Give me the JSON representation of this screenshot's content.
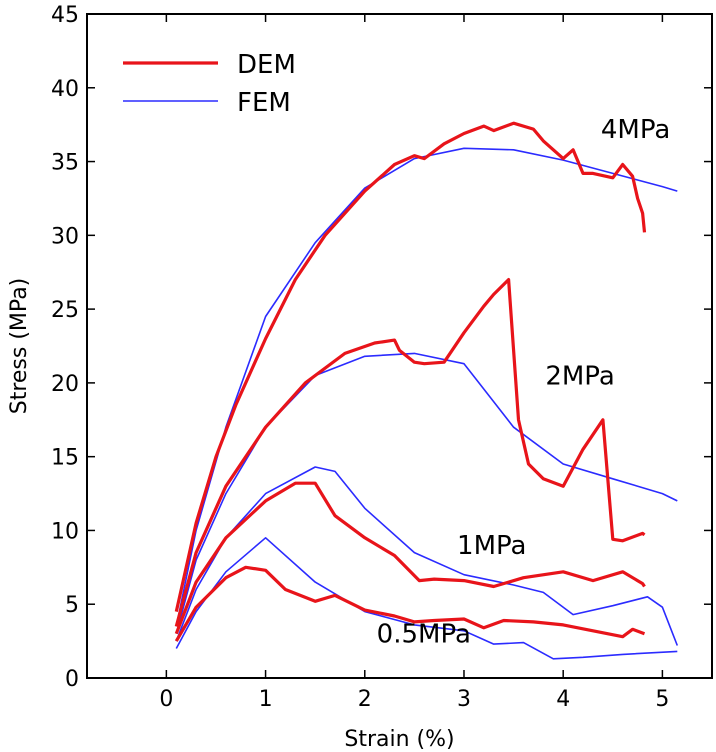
{
  "chart_data": {
    "type": "line",
    "xlabel": "Strain (%)",
    "ylabel": "Stress (MPa)",
    "xlim": [
      -0.8,
      5.5
    ],
    "ylim": [
      0,
      45
    ],
    "xticks": [
      "0",
      "1",
      "2",
      "3",
      "4",
      "5"
    ],
    "yticks": [
      "0",
      "5",
      "10",
      "15",
      "20",
      "25",
      "30",
      "35",
      "40",
      "45"
    ],
    "legend": {
      "placement": "top-left",
      "entries": [
        {
          "label": "DEM",
          "color": "#e8141a"
        },
        {
          "label": "FEM",
          "color": "#2b2bff"
        }
      ]
    },
    "annotations": [
      {
        "text": "4MPa",
        "x": 4.38,
        "y": 36.6
      },
      {
        "text": "2MPa",
        "x": 3.82,
        "y": 19.9
      },
      {
        "text": "1MPa",
        "x": 2.93,
        "y": 8.4
      },
      {
        "text": "0.5MPa",
        "x": 2.12,
        "y": 2.4
      }
    ],
    "series": [
      {
        "label": "DEM",
        "group": "4MPa",
        "color": "#e8141a",
        "x": [
          0.1,
          0.3,
          0.5,
          0.7,
          1.0,
          1.3,
          1.6,
          2.0,
          2.3,
          2.5,
          2.6,
          2.8,
          3.0,
          3.2,
          3.3,
          3.5,
          3.7,
          3.8,
          4.0,
          4.1,
          4.2,
          4.3,
          4.5,
          4.6,
          4.7,
          4.75,
          4.8,
          4.82
        ],
        "y": [
          4.5,
          10.5,
          15,
          18.5,
          23,
          27,
          30,
          33,
          34.8,
          35.4,
          35.2,
          36.2,
          36.9,
          37.4,
          37.1,
          37.6,
          37.2,
          36.4,
          35.2,
          35.8,
          34.2,
          34.2,
          33.9,
          34.8,
          34.0,
          32.5,
          31.5,
          30.2
        ]
      },
      {
        "label": "FEM",
        "group": "4MPa",
        "color": "#2b2bff",
        "x": [
          0.1,
          0.3,
          0.6,
          1.0,
          1.5,
          2.0,
          2.5,
          3.0,
          3.5,
          4.0,
          4.5,
          5.0,
          5.15
        ],
        "y": [
          3.5,
          10,
          17,
          24.5,
          29.5,
          33.2,
          35.2,
          35.9,
          35.8,
          35.1,
          34.2,
          33.3,
          33.0
        ]
      },
      {
        "label": "DEM",
        "group": "2MPa",
        "color": "#e8141a",
        "x": [
          0.1,
          0.3,
          0.6,
          1.0,
          1.4,
          1.8,
          2.1,
          2.3,
          2.35,
          2.5,
          2.6,
          2.8,
          3.0,
          3.2,
          3.3,
          3.45,
          3.55,
          3.65,
          3.8,
          4.0,
          4.2,
          4.4,
          4.5,
          4.6,
          4.8,
          4.82
        ],
        "y": [
          3.5,
          8.5,
          13,
          17,
          20,
          22,
          22.7,
          22.9,
          22.2,
          21.4,
          21.3,
          21.4,
          23.4,
          25.2,
          26.0,
          27.0,
          17.5,
          14.5,
          13.5,
          13.0,
          15.5,
          17.5,
          9.4,
          9.3,
          9.8,
          9.7
        ]
      },
      {
        "label": "FEM",
        "group": "2MPa",
        "color": "#2b2bff",
        "x": [
          0.1,
          0.3,
          0.6,
          1.0,
          1.5,
          2.0,
          2.5,
          3.0,
          3.5,
          4.0,
          4.5,
          5.0,
          5.15
        ],
        "y": [
          3.0,
          8.0,
          12.5,
          17,
          20.5,
          21.8,
          22.0,
          21.3,
          17.0,
          14.5,
          13.5,
          12.5,
          12.0
        ]
      },
      {
        "label": "DEM",
        "group": "1MPa",
        "color": "#e8141a",
        "x": [
          0.1,
          0.3,
          0.6,
          1.0,
          1.3,
          1.5,
          1.7,
          2.0,
          2.3,
          2.55,
          2.7,
          3.0,
          3.3,
          3.6,
          4.0,
          4.3,
          4.6,
          4.8,
          4.82
        ],
        "y": [
          3.0,
          6.5,
          9.5,
          12,
          13.2,
          13.2,
          11.0,
          9.5,
          8.3,
          6.6,
          6.7,
          6.6,
          6.2,
          6.8,
          7.2,
          6.6,
          7.2,
          6.4,
          6.2
        ]
      },
      {
        "label": "FEM",
        "group": "1MPa",
        "color": "#2b2bff",
        "x": [
          0.1,
          0.3,
          0.6,
          1.0,
          1.5,
          1.7,
          2.0,
          2.5,
          3.0,
          3.5,
          3.8,
          4.1,
          4.5,
          4.85,
          5.0,
          5.15
        ],
        "y": [
          2.5,
          6.0,
          9.5,
          12.5,
          14.3,
          14.0,
          11.5,
          8.5,
          7.0,
          6.3,
          5.8,
          4.3,
          4.9,
          5.5,
          4.8,
          2.2
        ]
      },
      {
        "label": "DEM",
        "group": "0.5MPa",
        "color": "#e8141a",
        "x": [
          0.1,
          0.3,
          0.6,
          0.8,
          1.0,
          1.2,
          1.5,
          1.7,
          2.0,
          2.3,
          2.5,
          2.7,
          3.0,
          3.2,
          3.4,
          3.7,
          4.0,
          4.3,
          4.6,
          4.7,
          4.82
        ],
        "y": [
          2.5,
          4.8,
          6.8,
          7.5,
          7.3,
          6.0,
          5.2,
          5.6,
          4.6,
          4.2,
          3.8,
          3.9,
          4.0,
          3.4,
          3.9,
          3.8,
          3.6,
          3.2,
          2.8,
          3.3,
          3.0
        ]
      },
      {
        "label": "FEM",
        "group": "0.5MPa",
        "color": "#2b2bff",
        "x": [
          0.1,
          0.3,
          0.6,
          1.0,
          1.5,
          2.0,
          2.5,
          3.0,
          3.3,
          3.6,
          3.9,
          4.2,
          4.6,
          5.15
        ],
        "y": [
          2.0,
          4.5,
          7.2,
          9.5,
          6.5,
          4.5,
          3.6,
          3.2,
          2.3,
          2.4,
          1.3,
          1.4,
          1.6,
          1.8
        ]
      }
    ]
  }
}
